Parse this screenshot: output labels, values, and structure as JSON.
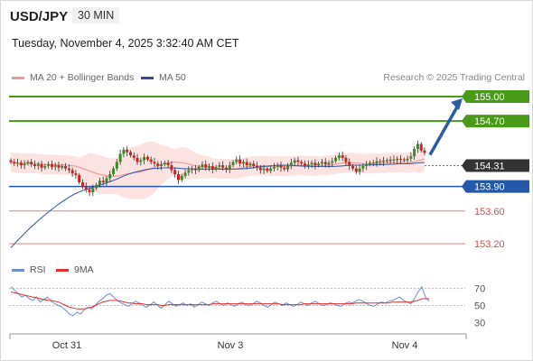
{
  "header": {
    "pair": "USD/JPY",
    "interval": "30 MIN",
    "datetime": "Tuesday, November 4, 2025 3:32:40 AM CET"
  },
  "legend": {
    "bollinger_label": "MA 20 + Bollinger Bands",
    "ma50_label": "MA 50",
    "credit": "Research © 2025 Trading Central"
  },
  "rsi_legend": {
    "rsi_label": "RSI",
    "ma_label": "9MA"
  },
  "colors": {
    "resistance": "#4a9a1a",
    "support": "#2458a8",
    "secondary_support": "#e04b4b",
    "current_price_box": "#333333",
    "arrow": "#2a5ca8",
    "bullish_candle": "#3a8a2a",
    "bearish_candle": "#d02020",
    "bollinger_fill": "#fde2e2",
    "ma20": "#ef9a9a",
    "ma50": "#3a64a8",
    "rsi": "#6f8fd0",
    "rsi_ma": "#e03030"
  },
  "chart_data": {
    "type": "candlestick",
    "x_ticks": [
      "Oct 31",
      "Nov 3",
      "Nov 4"
    ],
    "ylim": [
      153.1,
      155.05
    ],
    "levels": [
      {
        "label": "155.00",
        "value": 155.0,
        "kind": "resistance"
      },
      {
        "label": "154.70",
        "value": 154.7,
        "kind": "resistance"
      },
      {
        "label": "154.31",
        "value": 154.31,
        "kind": "current"
      },
      {
        "label": "153.90",
        "value": 153.9,
        "kind": "support"
      },
      {
        "label": "153.60",
        "value": 153.6,
        "kind": "secondary_support"
      },
      {
        "label": "153.20",
        "value": 153.2,
        "kind": "secondary_support"
      }
    ],
    "forecast_arrow": {
      "from": 154.31,
      "to": 155.0
    },
    "closes": [
      154.2,
      154.18,
      154.19,
      154.16,
      154.18,
      154.2,
      154.17,
      154.15,
      154.17,
      154.13,
      154.15,
      154.17,
      154.14,
      154.16,
      154.13,
      154.15,
      154.12,
      154.1,
      154.06,
      154.04,
      153.95,
      153.9,
      153.86,
      153.83,
      153.88,
      153.92,
      153.97,
      153.95,
      154.0,
      154.05,
      154.12,
      154.2,
      154.3,
      154.35,
      154.32,
      154.28,
      154.25,
      154.2,
      154.22,
      154.26,
      154.23,
      154.2,
      154.18,
      154.15,
      154.17,
      154.19,
      154.16,
      154.1,
      154.05,
      153.98,
      154.03,
      154.07,
      154.1,
      154.12,
      154.1,
      154.14,
      154.17,
      154.13,
      154.15,
      154.11,
      154.14,
      154.16,
      154.13,
      154.11,
      154.16,
      154.2,
      154.23,
      154.18,
      154.2,
      154.16,
      154.18,
      154.15,
      154.13,
      154.1,
      154.12,
      154.09,
      154.12,
      154.14,
      154.16,
      154.13,
      154.11,
      154.15,
      154.19,
      154.22,
      154.2,
      154.18,
      154.15,
      154.17,
      154.19,
      154.16,
      154.18,
      154.2,
      154.17,
      154.19,
      154.21,
      154.25,
      154.28,
      154.25,
      154.2,
      154.15,
      154.12,
      154.08,
      154.12,
      154.15,
      154.17,
      154.19,
      154.18,
      154.21,
      154.2,
      154.22,
      154.21,
      154.23,
      154.22,
      154.24,
      154.23,
      154.22,
      154.24,
      154.27,
      154.36,
      154.42,
      154.34,
      154.31
    ],
    "rsi": {
      "ticks": [
        70,
        50,
        30
      ],
      "ylim": [
        25,
        75
      ],
      "rsi": [
        72,
        68,
        64,
        60,
        62,
        58,
        56,
        60,
        54,
        57,
        60,
        55,
        52,
        50,
        48,
        44,
        40,
        38,
        42,
        40,
        45,
        48,
        46,
        50,
        55,
        58,
        62,
        64,
        60,
        56,
        53,
        51,
        49,
        52,
        55,
        53,
        50,
        48,
        51,
        54,
        50,
        47,
        51,
        55,
        52,
        49,
        51,
        53,
        50,
        52,
        48,
        51,
        54,
        52,
        50,
        53,
        55,
        52,
        50,
        53,
        51,
        49,
        52,
        54,
        51,
        50,
        52,
        55,
        53,
        50,
        48,
        51,
        54,
        52,
        50,
        53,
        51,
        49,
        51,
        54,
        52,
        50,
        53,
        55,
        52,
        50,
        51,
        53,
        52,
        50,
        49,
        52,
        54,
        53,
        55,
        57,
        55,
        52,
        50,
        49,
        52,
        54,
        53,
        55,
        56,
        58,
        60,
        56,
        54,
        52,
        58,
        66,
        72,
        60,
        55
      ],
      "ma": [
        66,
        65,
        64,
        63,
        62,
        61,
        60,
        59,
        58,
        57,
        56,
        56,
        55,
        54,
        52,
        50,
        48,
        47,
        46,
        46,
        46,
        47,
        48,
        50,
        52,
        54,
        55,
        56,
        56,
        56,
        55,
        54,
        53,
        53,
        52,
        52,
        52,
        51,
        51,
        51,
        51,
        50,
        50,
        51,
        51,
        51,
        51,
        51,
        51,
        51,
        51,
        51,
        51,
        51,
        51,
        52,
        52,
        52,
        52,
        52,
        52,
        52,
        52,
        52,
        52,
        52,
        52,
        52,
        52,
        52,
        52,
        52,
        52,
        52,
        51,
        51,
        51,
        51,
        51,
        51,
        52,
        52,
        52,
        52,
        52,
        52,
        52,
        52,
        52,
        52,
        52,
        52,
        52,
        52,
        53,
        53,
        53,
        53,
        53,
        53,
        53,
        53,
        53,
        53,
        54,
        54,
        54,
        54,
        54,
        54,
        55,
        56,
        58,
        58,
        58
      ]
    }
  }
}
